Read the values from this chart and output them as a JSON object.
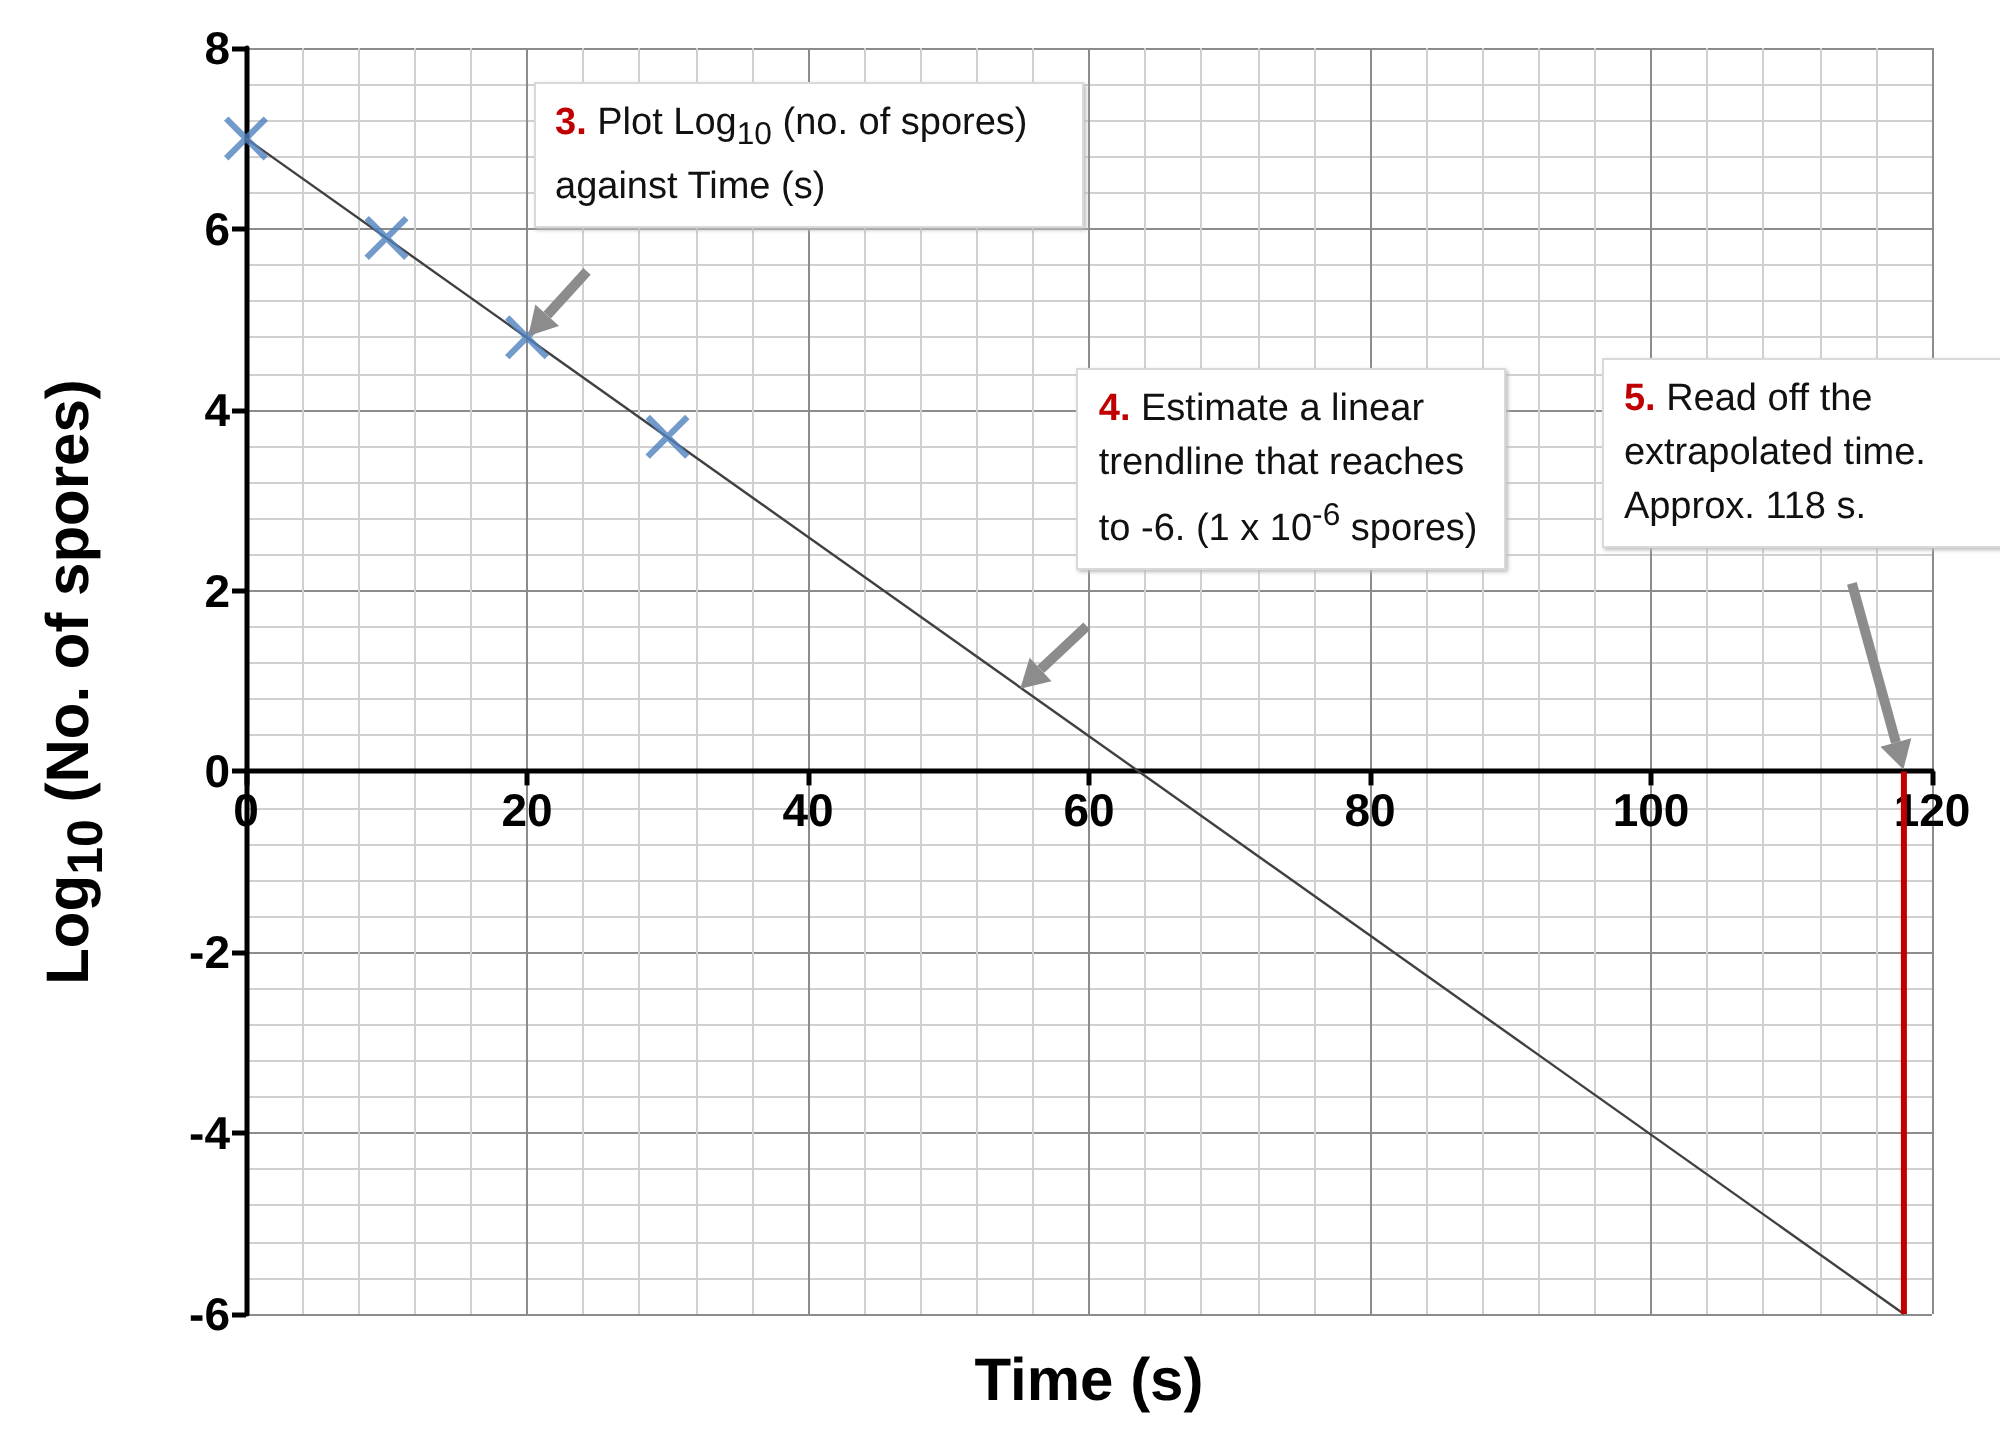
{
  "chart_data": {
    "type": "scatter",
    "xlabel": "Time (s)",
    "ylabel": "Log$_{10}$ (No. of spores)",
    "xlim": [
      0,
      120
    ],
    "ylim": [
      -6,
      8
    ],
    "xticks": [
      0,
      20,
      40,
      60,
      80,
      100,
      120
    ],
    "yticks": [
      -6,
      -4,
      -2,
      0,
      2,
      4,
      6,
      8
    ],
    "grid": true,
    "series": [
      {
        "color": "#4f81bd",
        "marker": "cross",
        "x": [
          0,
          10,
          20,
          30
        ],
        "values": [
          7,
          5.9,
          4.8,
          3.7
        ]
      },
      {
        "type": "line",
        "color": "#404040",
        "marker": "none",
        "x": [
          0,
          118
        ],
        "values": [
          7,
          -6
        ]
      }
    ],
    "ref_lines": [
      {
        "axis": "x",
        "value": 118,
        "color": "#c00000"
      }
    ],
    "annotations": [
      "3. Plot Log$_{10}$ (no. of spores) against Time (s)",
      "4. Estimate a linear trendline that reaches to -6. (1 x 10$^{-6}$ spores)",
      "5. Read off the extrapolated time. Approx. 118 s."
    ]
  }
}
